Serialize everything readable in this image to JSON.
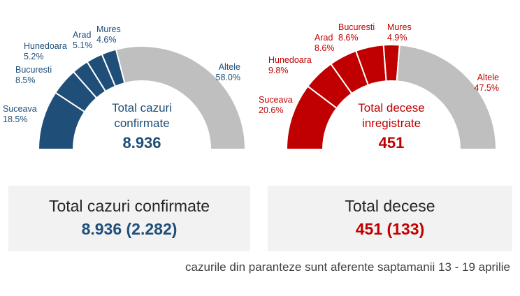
{
  "colors": {
    "cases": "#1f4e79",
    "deaths": "#c00000",
    "other": "#bfbfbf",
    "text": "#262626"
  },
  "chart_data": [
    {
      "type": "pie",
      "variant": "half-donut",
      "categories": [
        "Suceava",
        "Bucuresti",
        "Hunedoara",
        "Arad",
        "Mures",
        "Altele"
      ],
      "value_labels": [
        "18.5%",
        "8.5%",
        "5.2%",
        "5.1%",
        "4.6%",
        "58.0%"
      ],
      "values": [
        18.5,
        8.5,
        5.2,
        5.1,
        4.6,
        58.0
      ],
      "center_label": [
        "Total cazuri",
        "confirmate"
      ],
      "center_value": "8.936"
    },
    {
      "type": "pie",
      "variant": "half-donut",
      "categories": [
        "Suceava",
        "Hunedoara",
        "Arad",
        "Bucuresti",
        "Mures",
        "Altele"
      ],
      "value_labels": [
        "20.6%",
        "9.8%",
        "8.6%",
        "8.6%",
        "4.9%",
        "47.5%"
      ],
      "values": [
        20.6,
        9.8,
        8.6,
        8.6,
        4.9,
        47.5
      ],
      "center_label": [
        "Total decese",
        "inregistrate"
      ],
      "center_value": "451"
    }
  ],
  "summary": {
    "cases": {
      "title": "Total cazuri confirmate",
      "value": "8.936 (2.282)"
    },
    "deaths": {
      "title": "Total decese",
      "value": "451 (133)"
    }
  },
  "footnote": "cazurile din paranteze sunt aferente saptamanii 13 - 19 aprilie"
}
